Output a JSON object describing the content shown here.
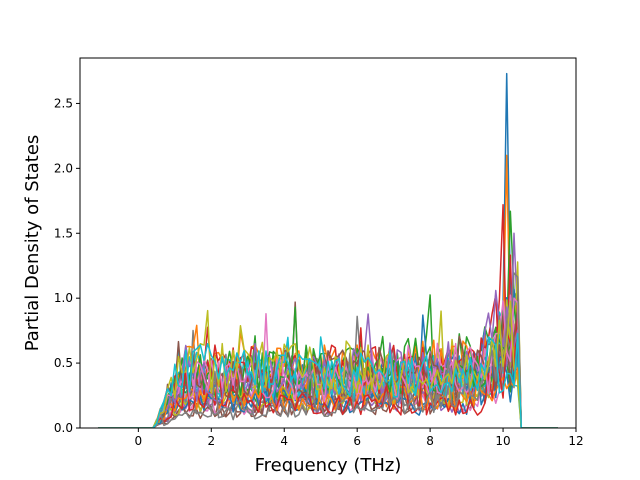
{
  "chart_data": {
    "type": "line",
    "title": "",
    "xlabel": "Frequency (THz)",
    "ylabel": "Partial Density of States",
    "xlim": [
      -1.6,
      12.0
    ],
    "ylim": [
      0.0,
      2.85
    ],
    "xticks": [
      0,
      2,
      4,
      6,
      8,
      10,
      12
    ],
    "yticks": [
      0.0,
      0.5,
      1.0,
      1.5,
      2.0,
      2.5
    ],
    "xtick_labels": [
      "0",
      "2",
      "4",
      "6",
      "8",
      "10",
      "12"
    ],
    "ytick_labels": [
      "0.0",
      "0.5",
      "1.0",
      "1.5",
      "2.0",
      "2.5"
    ],
    "grid": false,
    "legend": "none",
    "colors": [
      "#1f77b4",
      "#ff7f0e",
      "#2ca02c",
      "#d62728",
      "#9467bd",
      "#8c564b",
      "#e377c2",
      "#7f7f7f",
      "#bcbd22",
      "#17becf"
    ],
    "x_range": [
      -1.1,
      11.5
    ],
    "x_step": 0.1,
    "series_count": 30,
    "band": {
      "onset": 0.4,
      "cutoff": 10.45,
      "typical_level": [
        0.15,
        0.6
      ],
      "peaks": [
        {
          "x": 10.1,
          "y": 2.73
        },
        {
          "x": 10.05,
          "y": 2.1
        },
        {
          "x": 10.15,
          "y": 1.67
        },
        {
          "x": 10.0,
          "y": 1.72
        },
        {
          "x": 10.35,
          "y": 1.5
        },
        {
          "x": 4.3,
          "y": 0.97
        },
        {
          "x": 3.5,
          "y": 0.88
        },
        {
          "x": 6.0,
          "y": 0.86
        },
        {
          "x": 8.3,
          "y": 0.9
        },
        {
          "x": 1.1,
          "y": 0.65
        }
      ]
    }
  }
}
